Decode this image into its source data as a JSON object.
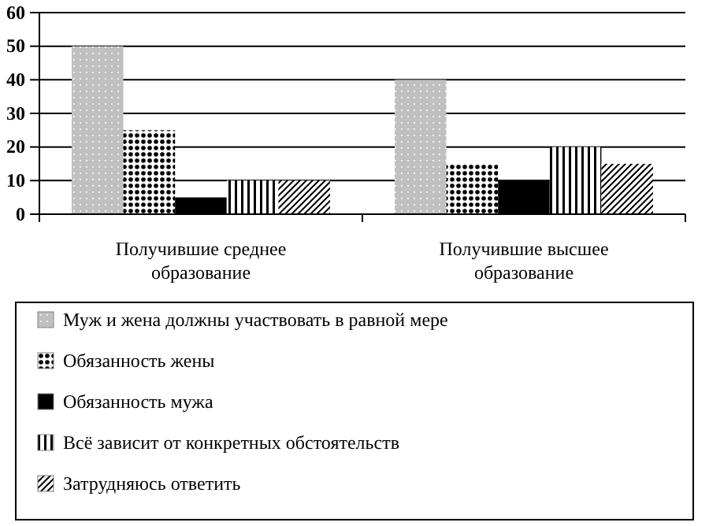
{
  "chart_data": {
    "type": "bar",
    "categories": [
      "Получившие среднее образование",
      "Получившие высшее образование"
    ],
    "series": [
      {
        "name": "Муж и жена должны участвовать в равной мере",
        "color": "#c0c0c0",
        "values": [
          50,
          40
        ]
      },
      {
        "name": "Обязанность жены",
        "color": "#ffffff",
        "values": [
          25,
          15
        ]
      },
      {
        "name": "Обязанность мужа",
        "color": "#000000",
        "values": [
          5,
          10
        ]
      },
      {
        "name": "Всё зависит от конкретных обстоятельств",
        "color": "#ffffff",
        "values": [
          10,
          20
        ]
      },
      {
        "name": "Затрудняюсь ответить",
        "color": "#ffffff",
        "values": [
          10,
          15
        ]
      }
    ],
    "ylim": [
      0,
      60
    ],
    "yticks": [
      0,
      10,
      20,
      30,
      40,
      50,
      60
    ],
    "grid": "y",
    "legend": "bottom"
  }
}
